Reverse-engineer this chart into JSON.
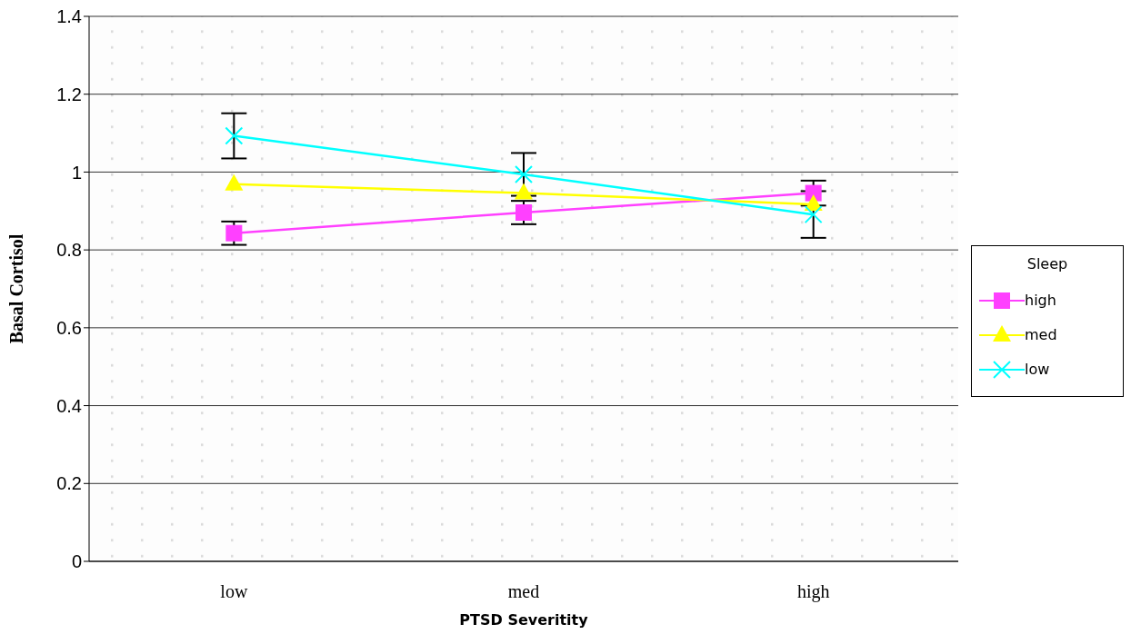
{
  "chart_data": {
    "type": "line",
    "xlabel": "PTSD Severitity",
    "ylabel": "Basal Cortisol",
    "legend_title": "Sleep",
    "categories": [
      "low",
      "med",
      "high"
    ],
    "ylim": [
      0,
      1.4
    ],
    "yticks": [
      0,
      0.2,
      0.4,
      0.6,
      0.8,
      1,
      1.2,
      1.4
    ],
    "grid": "y",
    "legend": "right",
    "series": [
      {
        "name": "high",
        "color": "#ff40ff",
        "marker": "square",
        "values": [
          0.843,
          0.896,
          0.946
        ],
        "errors": [
          0.03,
          0.03,
          0.032
        ]
      },
      {
        "name": "med",
        "color": "#ffff00",
        "marker": "triangle",
        "values": [
          0.969,
          0.946,
          0.917
        ]
      },
      {
        "name": "low",
        "color": "#00ffff",
        "marker": "cross",
        "values": [
          1.093,
          0.994,
          0.891
        ],
        "errors": [
          0.058,
          0.055,
          0.06
        ]
      }
    ]
  }
}
